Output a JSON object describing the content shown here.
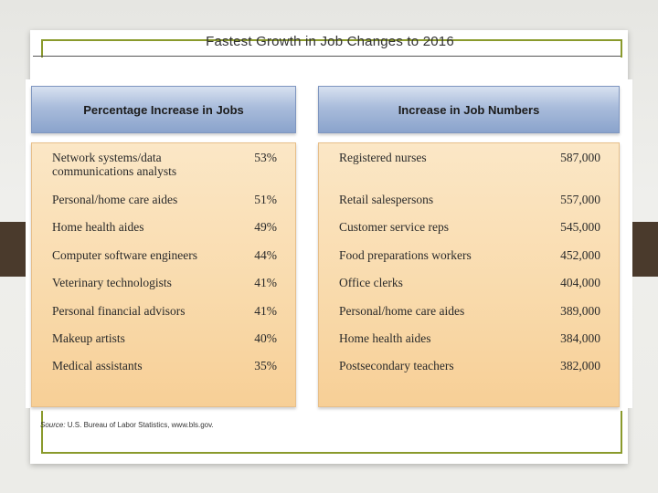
{
  "slide": {
    "title": "Fastest Growth in Job Changes to 2016",
    "source_label": "Source:",
    "source_text": " U.S. Bureau of Labor Statistics, www.bls.gov."
  },
  "percentage_table": {
    "header": "Percentage Increase in Jobs",
    "rows": [
      {
        "line1": "Network systems/data",
        "line2": "communications analysts",
        "value": "53%"
      },
      {
        "label": "Personal/home care aides",
        "value": "51%"
      },
      {
        "label": "Home health aides",
        "value": "49%"
      },
      {
        "label": "Computer software engineers",
        "value": "44%"
      },
      {
        "label": "Veterinary technologists",
        "value": "41%"
      },
      {
        "label": "Personal financial advisors",
        "value": "41%"
      },
      {
        "label": "Makeup artists",
        "value": "40%"
      },
      {
        "label": "Medical assistants",
        "value": "35%"
      }
    ]
  },
  "numbers_table": {
    "header": "Increase in Job Numbers",
    "rows": [
      {
        "label": "Registered nurses",
        "value": "587,000"
      },
      {
        "label": "Retail salespersons",
        "value": "557,000"
      },
      {
        "label": "Customer service reps",
        "value": "545,000"
      },
      {
        "label": "Food preparations workers",
        "value": "452,000"
      },
      {
        "label": "Office clerks",
        "value": "404,000"
      },
      {
        "label": "Personal/home care aides",
        "value": "389,000"
      },
      {
        "label": "Home health aides",
        "value": "384,000"
      },
      {
        "label": "Postsecondary teachers",
        "value": "382,000"
      }
    ]
  },
  "colors": {
    "frame_accent": "#8a9a2c",
    "header_blue": "#a9bcdb",
    "body_peach": "#f9dbad"
  }
}
